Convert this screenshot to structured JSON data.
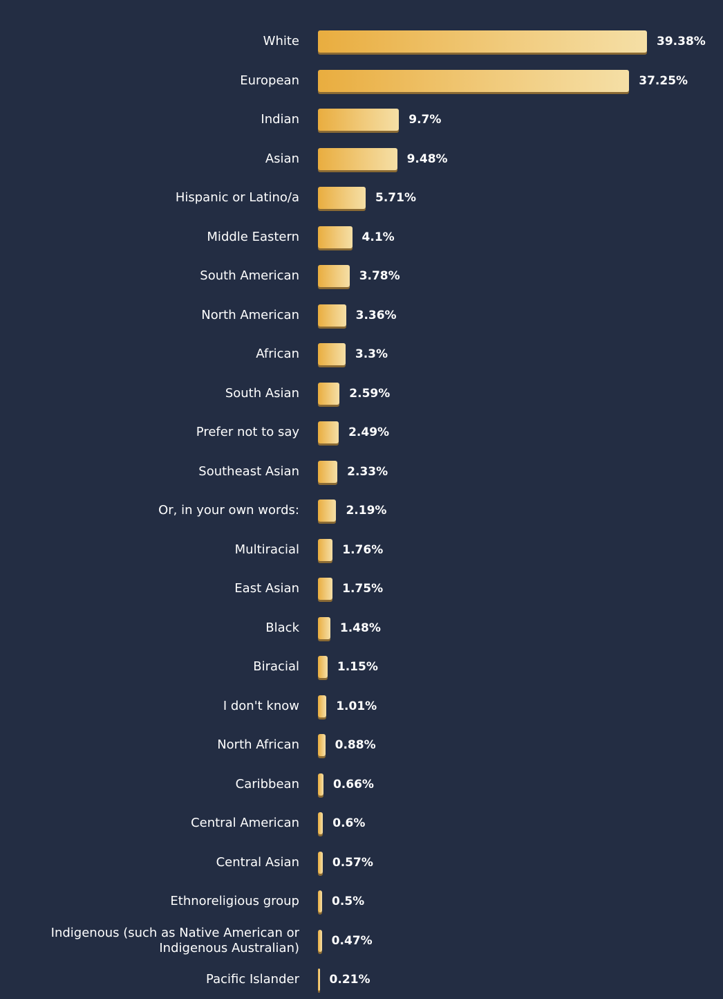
{
  "chart_data": {
    "type": "bar",
    "orientation": "horizontal",
    "categories": [
      "White",
      "European",
      "Indian",
      "Asian",
      "Hispanic or Latino/a",
      "Middle Eastern",
      "South American",
      "North American",
      "African",
      "South Asian",
      "Prefer not to say",
      "Southeast Asian",
      "Or, in your own words:",
      "Multiracial",
      "East Asian",
      "Black",
      "Biracial",
      "I don't know",
      "North African",
      "Caribbean",
      "Central American",
      "Central Asian",
      "Ethnoreligious group",
      "Indigenous (such as Native American or Indigenous Australian)",
      "Pacific Islander"
    ],
    "values": [
      39.38,
      37.25,
      9.7,
      9.48,
      5.71,
      4.1,
      3.78,
      3.36,
      3.3,
      2.59,
      2.49,
      2.33,
      2.19,
      1.76,
      1.75,
      1.48,
      1.15,
      1.01,
      0.88,
      0.66,
      0.6,
      0.57,
      0.5,
      0.47,
      0.21
    ],
    "value_labels": [
      "39.38%",
      "37.25%",
      "9.7%",
      "9.48%",
      "5.71%",
      "4.1%",
      "3.78%",
      "3.36%",
      "3.3%",
      "2.59%",
      "2.49%",
      "2.33%",
      "2.19%",
      "1.76%",
      "1.75%",
      "1.48%",
      "1.15%",
      "1.01%",
      "0.88%",
      "0.66%",
      "0.6%",
      "0.57%",
      "0.5%",
      "0.47%",
      "0.21%"
    ],
    "unit": "%",
    "title": "",
    "xlabel": "",
    "ylabel": "",
    "xlim": [
      0,
      39.38
    ],
    "grid": false,
    "legend": "none"
  },
  "colors": {
    "background": "#232d43",
    "bar_start": "#e9ad3f",
    "bar_end": "#f5dfa6",
    "text": "#ffffff"
  }
}
